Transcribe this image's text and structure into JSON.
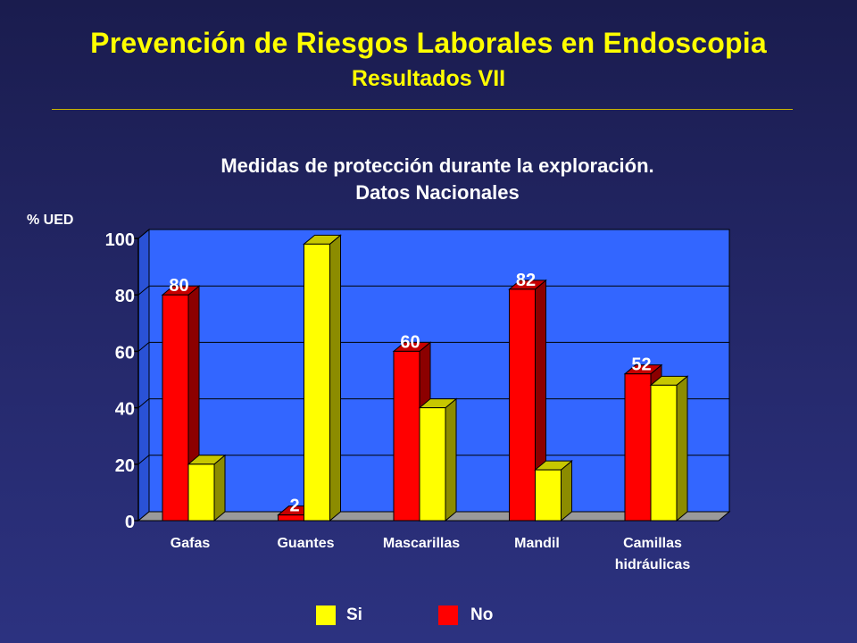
{
  "slide": {
    "title": "Prevención de Riesgos Laborales en Endoscopia",
    "subtitle": "Resultados VII"
  },
  "chart_data": {
    "type": "bar",
    "title": "Medidas de protección durante la exploración.",
    "subtitle": "Datos Nacionales",
    "ylabel": "% UED",
    "xlabel": "",
    "ylim": [
      0,
      100
    ],
    "yticks": [
      0,
      20,
      40,
      60,
      80,
      100
    ],
    "grid": true,
    "categories": [
      [
        "Gafas"
      ],
      [
        "Guantes"
      ],
      [
        "Mascarillas"
      ],
      [
        "Mandil"
      ],
      [
        "Camillas",
        "hidráulicas"
      ]
    ],
    "series": [
      {
        "name": "No",
        "color": "#ff0000",
        "values": [
          80,
          2,
          60,
          82,
          52
        ],
        "labels": [
          "80",
          "2",
          "60",
          "82",
          "52"
        ]
      },
      {
        "name": "Si",
        "color": "#ffff00",
        "values": [
          20,
          98,
          40,
          18,
          48
        ]
      }
    ],
    "legend": {
      "placement": "bottom",
      "order": [
        "Si",
        "No"
      ]
    },
    "plot_background": "#3366ff"
  }
}
